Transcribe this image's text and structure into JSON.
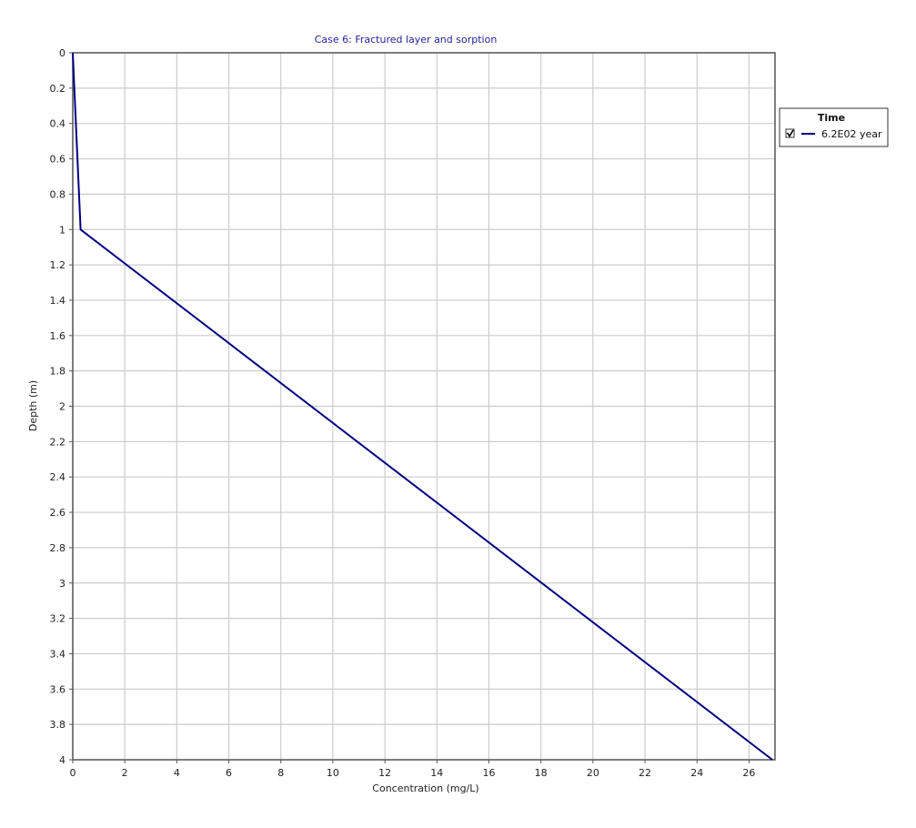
{
  "chart_data": {
    "type": "line",
    "title": "Case 6: Fractured layer and sorption",
    "xlabel": "Concentration (mg/L)",
    "ylabel": "Depth (m)",
    "xlim": [
      0,
      27
    ],
    "ylim": [
      0,
      4
    ],
    "y_inverted": true,
    "x_ticks": [
      "0",
      "2",
      "4",
      "6",
      "8",
      "10",
      "12",
      "14",
      "16",
      "18",
      "20",
      "22",
      "24",
      "26"
    ],
    "y_ticks": [
      "0",
      "0.2",
      "0.4",
      "0.6",
      "0.8",
      "1",
      "1.2",
      "1.4",
      "1.6",
      "1.8",
      "2",
      "2.2",
      "2.4",
      "2.6",
      "2.8",
      "3",
      "3.2",
      "3.4",
      "3.6",
      "3.8",
      "4"
    ],
    "grid": true,
    "legend_position": "right",
    "series": [
      {
        "name": "6.2E02 year",
        "color": "#000080",
        "points": [
          [
            0,
            0
          ],
          [
            0.3,
            1
          ],
          [
            26.9,
            4
          ]
        ]
      }
    ]
  },
  "legend": {
    "title": "Time",
    "checked": true
  }
}
